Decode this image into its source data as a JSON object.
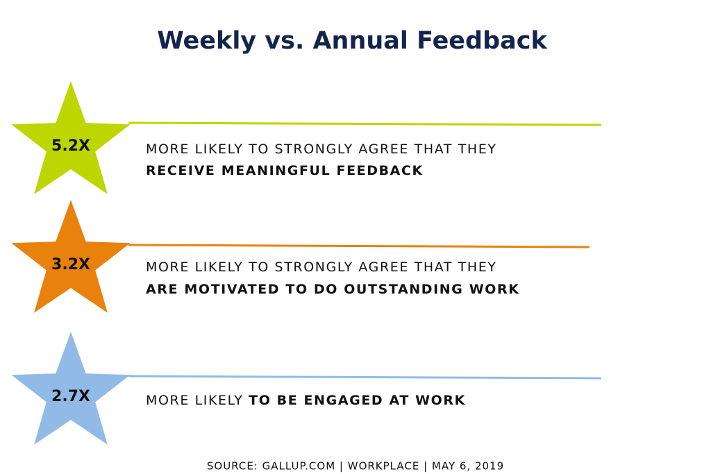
{
  "header": {
    "title": "Weekly vs. Annual Feedback"
  },
  "items": [
    {
      "value_label": "5.2X",
      "color": "#bdd600",
      "lines": [
        [
          {
            "text": "MORE LIKELY TO STRONGLY AGREE THAT THEY",
            "bold": false
          }
        ],
        [
          {
            "text": "RECEIVE MEANINGFUL FEEDBACK",
            "bold": true
          }
        ]
      ]
    },
    {
      "value_label": "3.2X",
      "color": "#e8820c",
      "lines": [
        [
          {
            "text": "MORE LIKELY TO STRONGLY AGREE THAT THEY",
            "bold": false
          }
        ],
        [
          {
            "text": "ARE MOTIVATED TO DO OUTSTANDING WORK",
            "bold": true
          }
        ]
      ]
    },
    {
      "value_label": "2.7X",
      "color": "#92bae6",
      "lines": [
        [
          {
            "text": "MORE LIKELY ",
            "bold": false
          },
          {
            "text": "TO BE ENGAGED AT WORK",
            "bold": true
          }
        ]
      ]
    }
  ],
  "footer": {
    "source": "SOURCE: GALLUP.COM | WORKPLACE | MAY 6, 2019"
  }
}
